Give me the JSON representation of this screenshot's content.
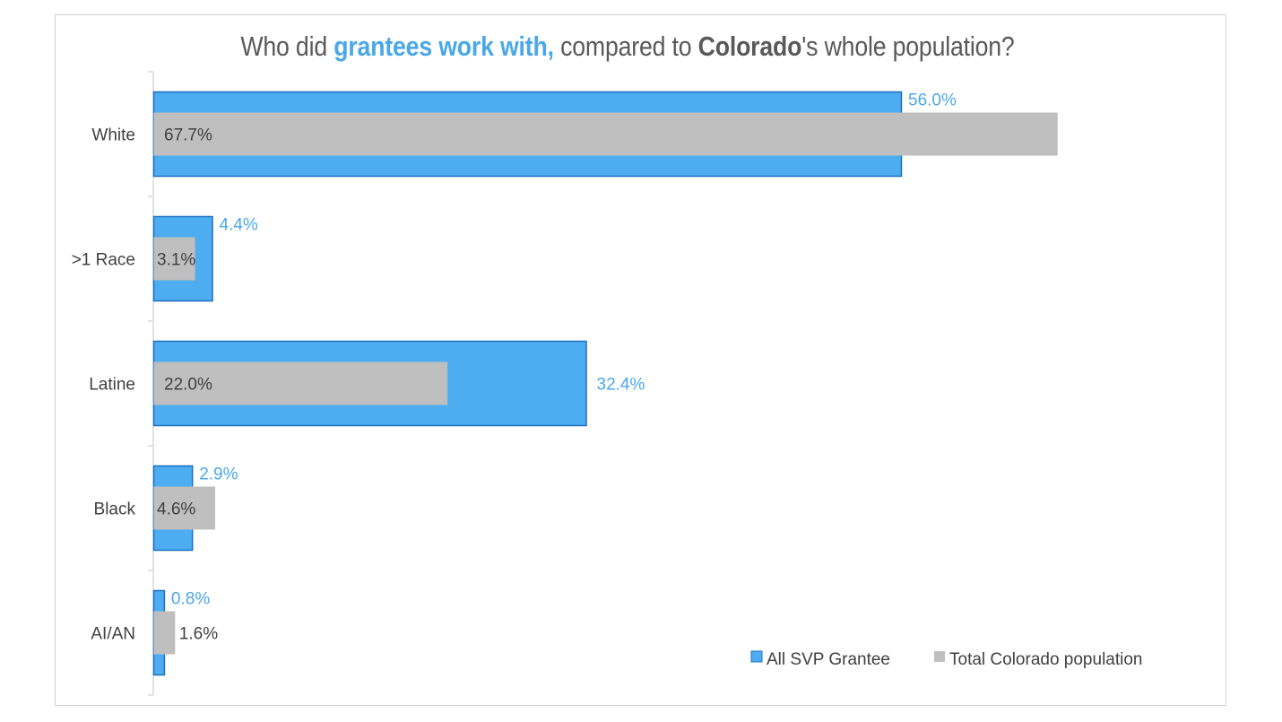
{
  "title": {
    "part1": "Who did ",
    "accent": "grantees work with,",
    "part2": " compared to ",
    "strong": "Colorado",
    "part3": "'s whole population?"
  },
  "colors": {
    "grantee": "#4dadf0",
    "grantee_border": "#1f6fbf",
    "population": "#bfbfbf",
    "accent_text": "#4aa8e8"
  },
  "chart_data": {
    "type": "bar",
    "orientation": "horizontal",
    "categories": [
      "White",
      ">1 Race",
      "Latine",
      "Black",
      "AI/AN"
    ],
    "series": [
      {
        "name": "All SVP Grantee",
        "values": [
          56.0,
          4.4,
          32.4,
          2.9,
          0.8
        ],
        "labels": [
          "56.0%",
          "4.4%",
          "32.4%",
          "2.9%",
          "0.8%"
        ]
      },
      {
        "name": "Total Colorado population",
        "values": [
          67.7,
          3.1,
          22.0,
          4.6,
          1.6
        ],
        "labels": [
          "67.7%",
          "3.1%",
          "22.0%",
          "4.6%",
          "1.6%"
        ]
      }
    ],
    "xlim": [
      0,
      80
    ],
    "grid": false,
    "legend": "bottom-right"
  }
}
